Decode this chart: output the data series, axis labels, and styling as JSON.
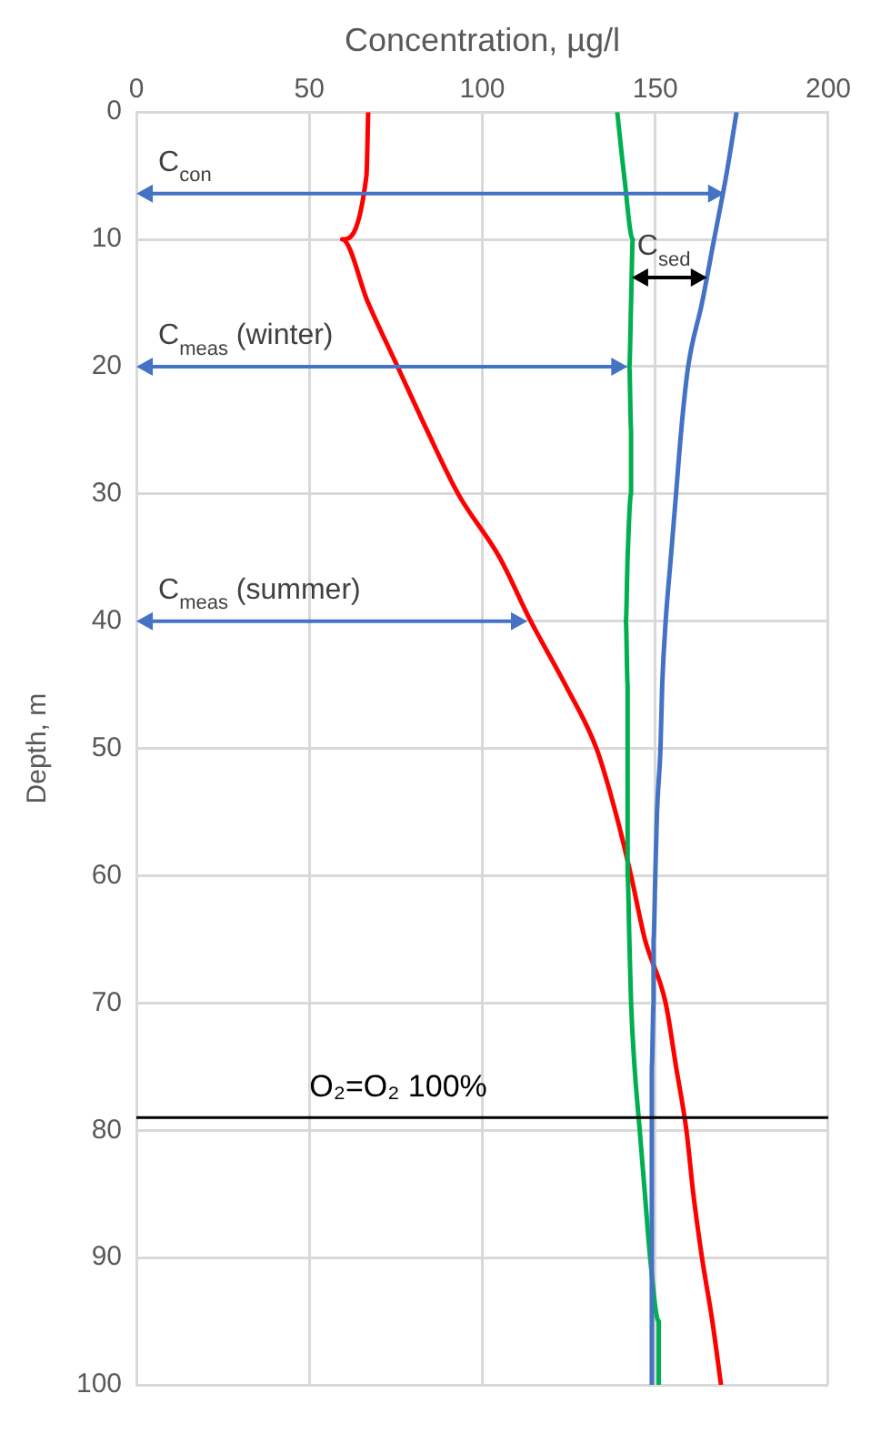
{
  "chart_data": {
    "type": "line",
    "xlabel": "Concentration, µg/l",
    "ylabel": "Depth, m",
    "xlim": [
      0,
      200
    ],
    "xticks": [
      0,
      50,
      100,
      150,
      200
    ],
    "ylim": [
      100,
      0
    ],
    "yticks": [
      0,
      10,
      20,
      30,
      40,
      50,
      60,
      70,
      80,
      90,
      100
    ],
    "grid": true,
    "legend": false,
    "marker": "none",
    "line_style": "solid",
    "series": [
      {
        "color": "#4472c4",
        "x": [
          173.5,
          170.5,
          167,
          163.5,
          159.5,
          157.5,
          156,
          154.5,
          153,
          152,
          151.5,
          150.5,
          150,
          149.5,
          149.5,
          149,
          149,
          149,
          149,
          149,
          149
        ],
        "values": [
          0,
          5,
          10,
          15,
          20,
          25,
          30,
          35,
          40,
          45,
          50,
          55,
          60,
          65,
          70,
          75,
          80,
          85,
          90,
          95,
          100
        ]
      },
      {
        "color": "#00b050",
        "x": [
          139,
          141,
          143.5,
          143,
          142.5,
          143,
          143,
          142,
          141.5,
          142,
          142,
          142,
          142,
          142.5,
          143,
          144,
          145.5,
          147,
          148.5,
          151,
          151
        ],
        "values": [
          0,
          5,
          10,
          15,
          20,
          25,
          30,
          35,
          40,
          45,
          50,
          55,
          60,
          65,
          70,
          75,
          80,
          85,
          90,
          95,
          100
        ]
      },
      {
        "color": "#ff0000",
        "x": [
          67,
          66.5,
          59.5,
          67,
          75.5,
          84,
          93,
          105,
          114,
          124,
          133,
          138.5,
          143,
          147,
          153,
          156,
          159,
          161,
          163.5,
          166.5,
          169
        ],
        "values": [
          0,
          5,
          10,
          15,
          20,
          25,
          30,
          35,
          40,
          45,
          50,
          55,
          60,
          65,
          70,
          75,
          80,
          85,
          90,
          95,
          100
        ]
      }
    ],
    "ref_lines": [
      {
        "axis": "y",
        "value": 79,
        "label": "O₂=O₂ 100%",
        "color": "#000000"
      }
    ],
    "annotations": [
      {
        "text": "C$_{con}$",
        "x": 170,
        "y": 6.4
      },
      {
        "text": "C$_{sed}$",
        "x": 165,
        "y": 13
      },
      {
        "text": "C$_{meas}$ (winter)",
        "x": 142,
        "y": 20
      },
      {
        "text": "C$_{meas}$ (summer)",
        "x": 113,
        "y": 40
      }
    ]
  }
}
